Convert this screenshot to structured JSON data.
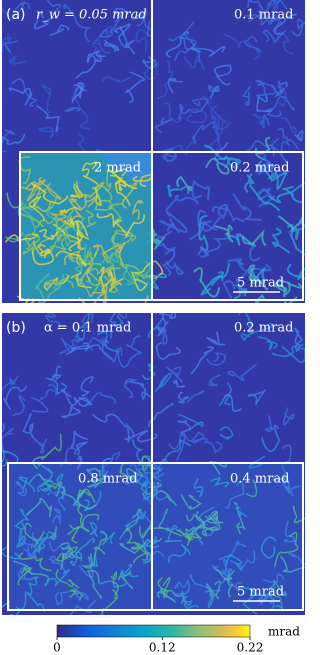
{
  "panels": [
    {
      "label": "(a)",
      "titles": [
        "r_w = 0.05 mrad",
        "0.1 mrad",
        "2 mrad",
        "0.2 mrad"
      ],
      "scale_bar": "5 mrad"
    },
    {
      "label": "(b)",
      "titles": [
        "α = 0.1 mrad",
        "0.2 mrad",
        "0.8 mrad",
        "0.4 mrad"
      ],
      "scale_bar": "5 mrad"
    }
  ],
  "colorbar": {
    "lim": [
      0,
      0.22
    ],
    "ticks": [
      0,
      0.12,
      0.22
    ],
    "unit": "mrad"
  }
}
